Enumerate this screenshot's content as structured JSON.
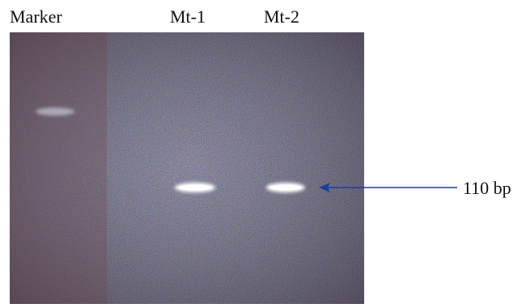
{
  "lanes": [
    "Marker",
    "Mt-1",
    "Mt-2"
  ],
  "annotation": "110 bp"
}
